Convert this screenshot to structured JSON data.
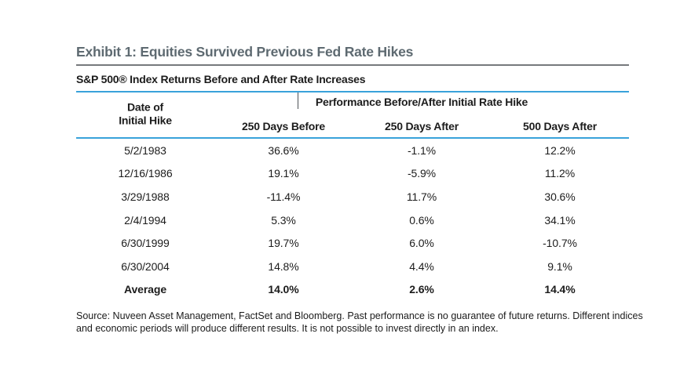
{
  "chart_data": {
    "type": "table",
    "title": "Exhibit 1: Equities Survived Previous Fed Rate Hikes",
    "subtitle": "S&P 500® Index Returns Before and After Rate Increases",
    "group_header": "Performance Before/After Initial Rate Hike",
    "row_header": {
      "line1": "Date of",
      "line2": "Initial Hike"
    },
    "columns": [
      "250 Days Before",
      "250 Days After",
      "500 Days After"
    ],
    "rows": [
      [
        "5/2/1983",
        "36.6%",
        "-1.1%",
        "12.2%"
      ],
      [
        "12/16/1986",
        "19.1%",
        "-5.9%",
        "11.2%"
      ],
      [
        "3/29/1988",
        "-11.4%",
        "11.7%",
        "30.6%"
      ],
      [
        "2/4/1994",
        "5.3%",
        "0.6%",
        "34.1%"
      ],
      [
        "6/30/1999",
        "19.7%",
        "6.0%",
        "-10.7%"
      ],
      [
        "6/30/2004",
        "14.8%",
        "4.4%",
        "9.1%"
      ],
      [
        "Average",
        "14.0%",
        "2.6%",
        "14.4%"
      ]
    ]
  },
  "source": {
    "line1": "Source: Nuveen Asset Management, FactSet and Bloomberg. Past performance is no guarantee of future returns. Different indices",
    "line2": "and economic periods will produce different results. It is not possible to invest directly in an index."
  },
  "colors": {
    "accent_blue": "#39a2da",
    "title_gray": "#5e6a71",
    "rule_gray": "#76797c"
  }
}
